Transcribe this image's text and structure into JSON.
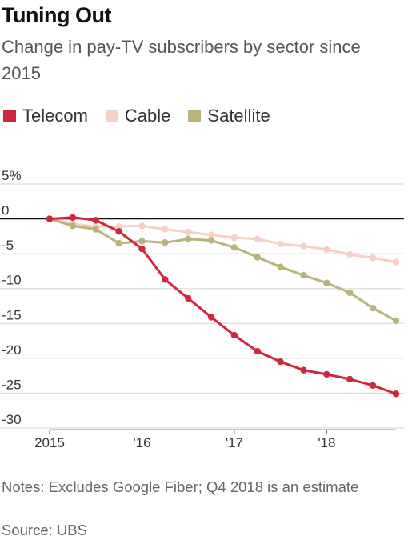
{
  "header": {
    "title": "Tuning Out",
    "subtitle": "Change in pay-TV subscribers by sector since 2015"
  },
  "footer": {
    "notes": "Notes: Excludes Google Fiber; Q4 2018 is an estimate",
    "source": "Source: UBS"
  },
  "chart_data": {
    "type": "line",
    "x": [
      "2015 Q1",
      "2015 Q2",
      "2015 Q3",
      "2015 Q4",
      "2016 Q1",
      "2016 Q2",
      "2016 Q3",
      "2016 Q4",
      "2017 Q1",
      "2017 Q2",
      "2017 Q3",
      "2017 Q4",
      "2018 Q1",
      "2018 Q2",
      "2018 Q3",
      "2018 Q4"
    ],
    "x_ticks": [
      {
        "index": 0,
        "label": "2015"
      },
      {
        "index": 4,
        "label": "'16"
      },
      {
        "index": 8,
        "label": "'17"
      },
      {
        "index": 12,
        "label": "'18"
      }
    ],
    "y_ticks": [
      {
        "value": 5,
        "label": "5%"
      },
      {
        "value": 0,
        "label": "0"
      },
      {
        "value": -5,
        "label": "-5"
      },
      {
        "value": -10,
        "label": "-10"
      },
      {
        "value": -15,
        "label": "-15"
      },
      {
        "value": -20,
        "label": "-20"
      },
      {
        "value": -25,
        "label": "-25"
      },
      {
        "value": -30,
        "label": "-30"
      }
    ],
    "ylim": [
      -30,
      5
    ],
    "grid": true,
    "legend_position": "top",
    "series": [
      {
        "name": "Telecom",
        "color": "#d0283a",
        "values": [
          0,
          0.2,
          -0.2,
          -1.8,
          -4.3,
          -8.7,
          -11.4,
          -14.1,
          -16.7,
          -19.0,
          -20.5,
          -21.7,
          -22.3,
          -23.0,
          -23.9,
          -25.1
        ]
      },
      {
        "name": "Cable",
        "color": "#f7cfc4",
        "values": [
          0,
          -0.7,
          -1.1,
          -1.1,
          -1.0,
          -1.5,
          -1.9,
          -2.3,
          -2.7,
          -2.9,
          -3.6,
          -3.9,
          -4.4,
          -5.1,
          -5.6,
          -6.2
        ]
      },
      {
        "name": "Satellite",
        "color": "#b8b47c",
        "values": [
          0,
          -1.0,
          -1.5,
          -3.5,
          -3.2,
          -3.4,
          -2.9,
          -3.1,
          -4.1,
          -5.5,
          -6.9,
          -8.1,
          -9.2,
          -10.6,
          -12.8,
          -14.6
        ]
      }
    ]
  }
}
